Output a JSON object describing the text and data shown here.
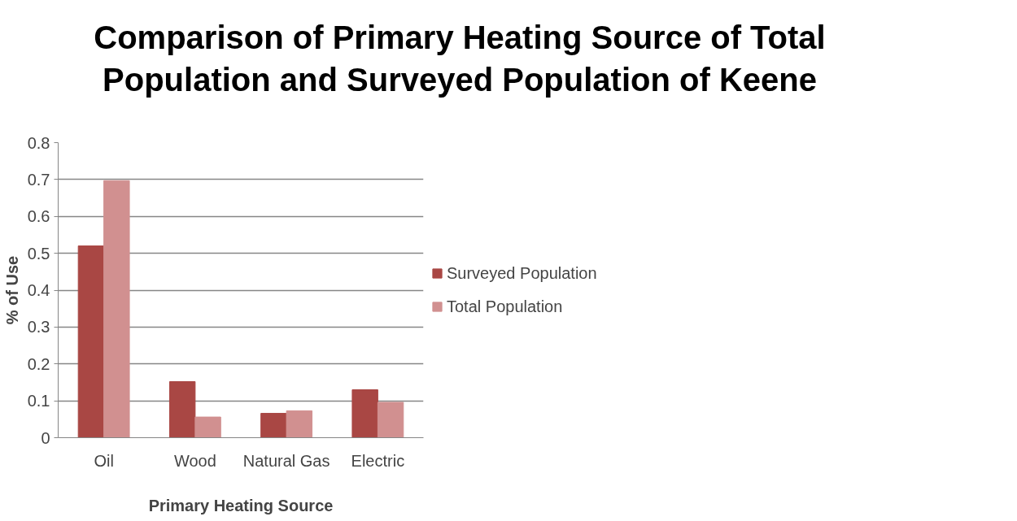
{
  "chart_data": {
    "type": "bar",
    "title": "Comparison of Primary Heating Source of Total Population and Surveyed Population of Keene",
    "xlabel": "Primary Heating Source",
    "ylabel": "% of Use",
    "categories": [
      "Oil",
      "Wood",
      "Natural Gas",
      "Electric"
    ],
    "series": [
      {
        "name": "Surveyed Population",
        "color": "#a94744",
        "values": [
          0.52,
          0.152,
          0.066,
          0.13
        ]
      },
      {
        "name": "Total Population",
        "color": "#d19090",
        "values": [
          0.697,
          0.056,
          0.073,
          0.096
        ]
      }
    ],
    "ylim": [
      0,
      0.8
    ],
    "yticks": [
      0,
      0.1,
      0.2,
      0.3,
      0.4,
      0.5,
      0.6,
      0.7,
      0.8
    ],
    "grid": "y",
    "legend": "right"
  }
}
